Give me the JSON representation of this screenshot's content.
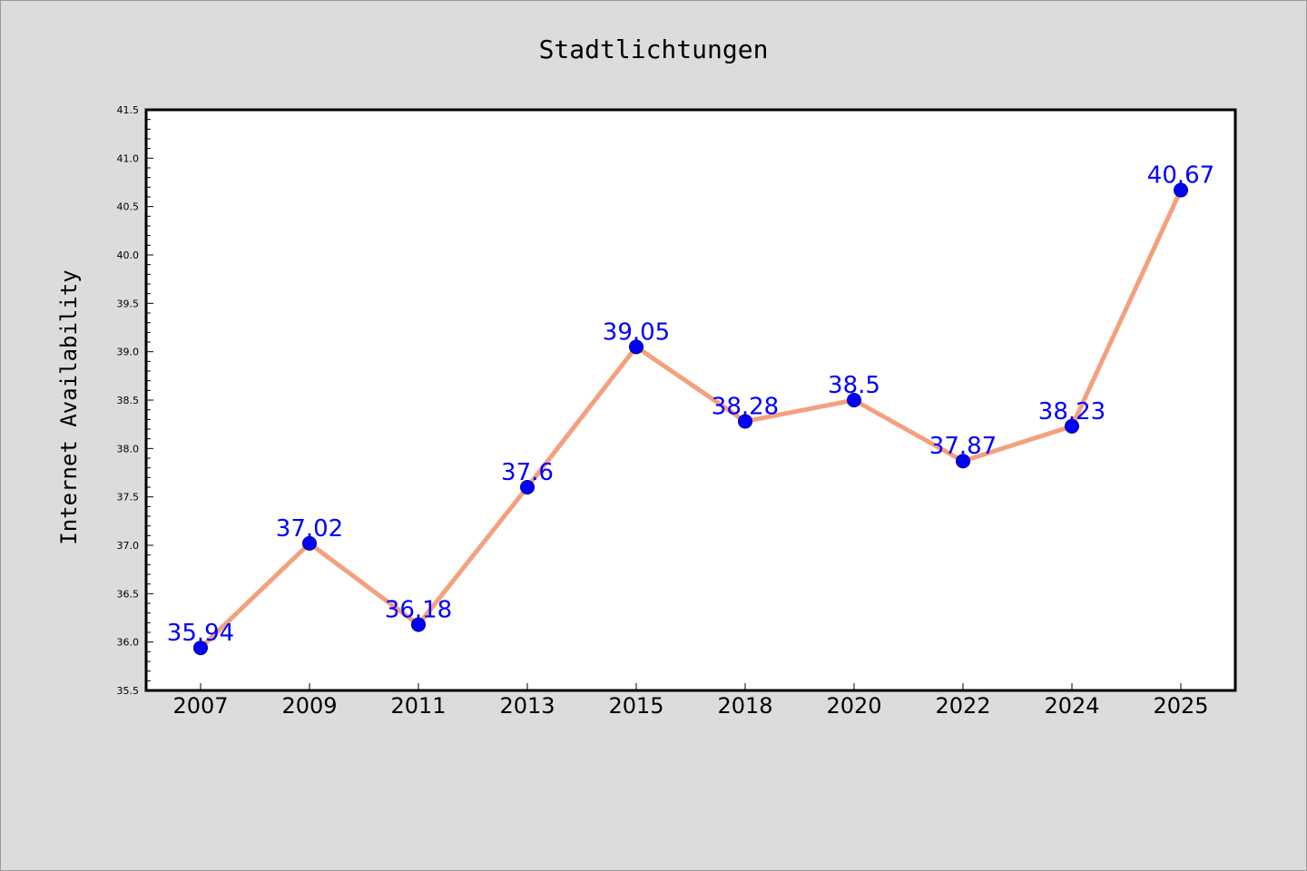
{
  "colors": {
    "background": "#dcdcdc",
    "plot_background": "#ffffff",
    "line": "#f4a07e",
    "marker": "#0000ff",
    "marker_edge": "#000080",
    "data_label": "#0000ff"
  },
  "chart_data": {
    "type": "line",
    "title": "Stadtlichtungen",
    "xlabel": "",
    "ylabel": "Internet Availability",
    "categories": [
      "2007",
      "2009",
      "2011",
      "2013",
      "2015",
      "2018",
      "2020",
      "2022",
      "2024",
      "2025"
    ],
    "series": [
      {
        "values": [
          35.94,
          37.02,
          36.18,
          37.6,
          39.05,
          38.28,
          38.5,
          37.87,
          38.23,
          40.67
        ],
        "data_labels": [
          "35.94",
          "37.02",
          "36.18",
          "37.6",
          "39.05",
          "38.28",
          "38.5",
          "37.87",
          "38.23",
          "40.67"
        ]
      }
    ],
    "ylim": [
      35.5,
      41.5
    ],
    "yticks": [
      "35.5",
      "36.0",
      "36.5",
      "37.0",
      "37.5",
      "38.0",
      "38.5",
      "39.0",
      "39.5",
      "40.0",
      "40.5",
      "41.0",
      "41.5"
    ],
    "grid": false,
    "legend": "none"
  }
}
